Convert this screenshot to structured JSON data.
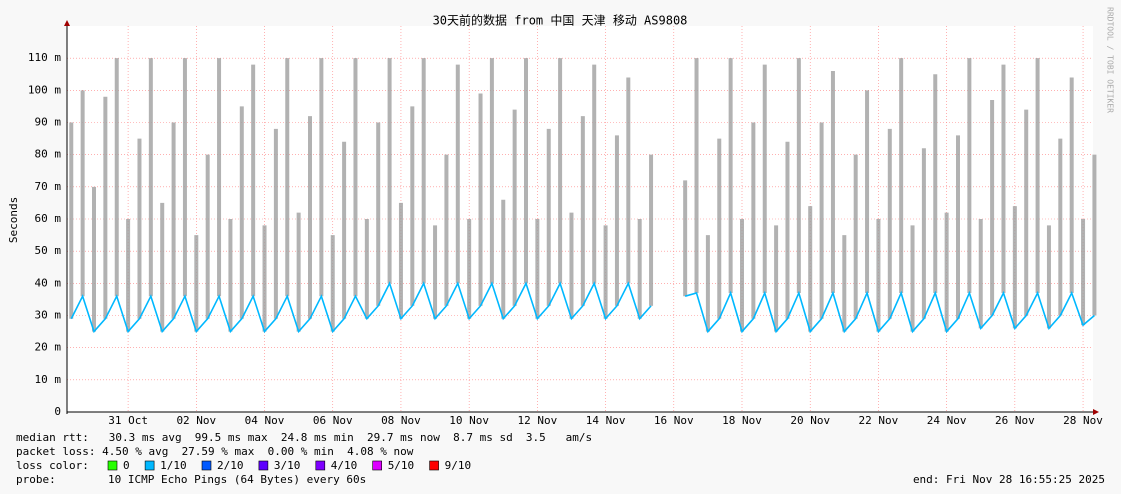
{
  "chart_data": {
    "type": "line",
    "title": "30天前的数据 from 中国 天津 移动 AS9808",
    "y_label": "Seconds",
    "watermark": "RRDTOOL / TOBI OETIKER",
    "ylim": [
      0,
      120
    ],
    "yticks": [
      0,
      {
        "value": 10,
        "label": "10 m"
      },
      {
        "value": 20,
        "label": "20 m"
      },
      {
        "value": 30,
        "label": "30 m"
      },
      {
        "value": 40,
        "label": "40 m"
      },
      {
        "value": 50,
        "label": "50 m"
      },
      {
        "value": 60,
        "label": "60 m"
      },
      {
        "value": 70,
        "label": "70 m"
      },
      {
        "value": 80,
        "label": "80 m"
      },
      {
        "value": 90,
        "label": "90 m"
      },
      {
        "value": 100,
        "label": "100 m"
      },
      {
        "value": 110,
        "label": "110 m"
      }
    ],
    "xlim": [
      "2025-10-29T05:00",
      "2025-11-28T07:00"
    ],
    "xticks": [
      {
        "value": "2025-10-31T00:00",
        "label": "31 Oct"
      },
      {
        "value": "2025-11-02T00:00",
        "label": "02 Nov"
      },
      {
        "value": "2025-11-04T00:00",
        "label": "04 Nov"
      },
      {
        "value": "2025-11-06T00:00",
        "label": "06 Nov"
      },
      {
        "value": "2025-11-08T00:00",
        "label": "08 Nov"
      },
      {
        "value": "2025-11-10T00:00",
        "label": "10 Nov"
      },
      {
        "value": "2025-11-12T00:00",
        "label": "12 Nov"
      },
      {
        "value": "2025-11-14T00:00",
        "label": "14 Nov"
      },
      {
        "value": "2025-11-16T00:00",
        "label": "16 Nov"
      },
      {
        "value": "2025-11-18T00:00",
        "label": "18 Nov"
      },
      {
        "value": "2025-11-20T00:00",
        "label": "20 Nov"
      },
      {
        "value": "2025-11-22T00:00",
        "label": "22 Nov"
      },
      {
        "value": "2025-11-24T00:00",
        "label": "24 Nov"
      },
      {
        "value": "2025-11-26T00:00",
        "label": "26 Nov"
      },
      {
        "value": "2025-11-28T00:00",
        "label": "28 Nov"
      }
    ],
    "grid": true,
    "x": [
      "2025-10-29T08:00",
      "2025-10-29T16:00",
      "2025-10-30T00:00",
      "2025-10-30T08:00",
      "2025-10-30T16:00",
      "2025-10-31T00:00",
      "2025-10-31T08:00",
      "2025-10-31T16:00",
      "2025-11-01T00:00",
      "2025-11-01T08:00",
      "2025-11-01T16:00",
      "2025-11-02T00:00",
      "2025-11-02T08:00",
      "2025-11-02T16:00",
      "2025-11-03T00:00",
      "2025-11-03T08:00",
      "2025-11-03T16:00",
      "2025-11-04T00:00",
      "2025-11-04T08:00",
      "2025-11-04T16:00",
      "2025-11-05T00:00",
      "2025-11-05T08:00",
      "2025-11-05T16:00",
      "2025-11-06T00:00",
      "2025-11-06T08:00",
      "2025-11-06T16:00",
      "2025-11-07T00:00",
      "2025-11-07T08:00",
      "2025-11-07T16:00",
      "2025-11-08T00:00",
      "2025-11-08T08:00",
      "2025-11-08T16:00",
      "2025-11-09T00:00",
      "2025-11-09T08:00",
      "2025-11-09T16:00",
      "2025-11-10T00:00",
      "2025-11-10T08:00",
      "2025-11-10T16:00",
      "2025-11-11T00:00",
      "2025-11-11T08:00",
      "2025-11-11T16:00",
      "2025-11-12T00:00",
      "2025-11-12T08:00",
      "2025-11-12T16:00",
      "2025-11-13T00:00",
      "2025-11-13T08:00",
      "2025-11-13T16:00",
      "2025-11-14T00:00",
      "2025-11-14T08:00",
      "2025-11-14T16:00",
      "2025-11-15T00:00",
      "2025-11-15T08:00",
      "2025-11-15T16:00",
      "2025-11-16T00:00",
      "2025-11-16T08:00",
      "2025-11-16T16:00",
      "2025-11-17T00:00",
      "2025-11-17T08:00",
      "2025-11-17T16:00",
      "2025-11-18T00:00",
      "2025-11-18T08:00",
      "2025-11-18T16:00",
      "2025-11-19T00:00",
      "2025-11-19T08:00",
      "2025-11-19T16:00",
      "2025-11-20T00:00",
      "2025-11-20T08:00",
      "2025-11-20T16:00",
      "2025-11-21T00:00",
      "2025-11-21T08:00",
      "2025-11-21T16:00",
      "2025-11-22T00:00",
      "2025-11-22T08:00",
      "2025-11-22T16:00",
      "2025-11-23T00:00",
      "2025-11-23T08:00",
      "2025-11-23T16:00",
      "2025-11-24T00:00",
      "2025-11-24T08:00",
      "2025-11-24T16:00",
      "2025-11-25T00:00",
      "2025-11-25T08:00",
      "2025-11-25T16:00",
      "2025-11-26T00:00",
      "2025-11-26T08:00",
      "2025-11-26T16:00",
      "2025-11-27T00:00",
      "2025-11-27T08:00",
      "2025-11-27T16:00",
      "2025-11-28T00:00",
      "2025-11-28T08:00"
    ],
    "series": [
      {
        "color": "#00b8ff",
        "values": [
          29,
          36,
          25,
          29,
          36,
          25,
          29,
          36,
          25,
          29,
          36,
          25,
          29,
          36,
          25,
          29,
          36,
          25,
          29,
          36,
          25,
          29,
          36,
          25,
          29,
          36,
          29,
          33,
          40,
          29,
          33,
          40,
          29,
          33,
          40,
          29,
          33,
          40,
          29,
          33,
          40,
          29,
          33,
          40,
          29,
          33,
          40,
          29,
          33,
          40,
          29,
          33,
          null,
          null,
          36,
          37,
          25,
          29,
          37,
          25,
          29,
          37,
          25,
          29,
          37,
          25,
          29,
          37,
          25,
          29,
          37,
          25,
          29,
          37,
          25,
          29,
          37,
          25,
          29,
          37,
          26,
          30,
          37,
          26,
          30,
          37,
          26,
          30,
          37,
          27,
          30
        ]
      },
      {
        "color": "#a0a0a0",
        "values": [
          90,
          100,
          70,
          98,
          110,
          60,
          85,
          110,
          65,
          90,
          110,
          55,
          80,
          110,
          60,
          95,
          108,
          58,
          88,
          110,
          62,
          92,
          110,
          55,
          84,
          110,
          60,
          90,
          110,
          65,
          95,
          110,
          58,
          80,
          108,
          60,
          99,
          110,
          66,
          94,
          110,
          60,
          88,
          110,
          62,
          92,
          108,
          58,
          86,
          104,
          60,
          80,
          null,
          null,
          72,
          110,
          55,
          85,
          110,
          60,
          90,
          108,
          58,
          84,
          110,
          64,
          90,
          106,
          55,
          80,
          100,
          60,
          88,
          110,
          58,
          82,
          105,
          62,
          86,
          110,
          60,
          97,
          108,
          64,
          94,
          110,
          58,
          85,
          104,
          60,
          80
        ]
      }
    ],
    "stats_lines": [
      "median rtt:   30.3 ms avg  99.5 ms max  24.8 ms min  29.7 ms now  8.7 ms sd  3.5   am/s",
      "packet loss: 4.50 % avg  27.59 % max  0.00 % min  4.08 % now"
    ],
    "loss_color_label": "loss color:",
    "loss_legend": [
      {
        "label": "0",
        "color": "#26ff00"
      },
      {
        "label": "1/10",
        "color": "#00b8ff"
      },
      {
        "label": "2/10",
        "color": "#0059ff"
      },
      {
        "label": "3/10",
        "color": "#5e00ff"
      },
      {
        "label": "4/10",
        "color": "#7e00ff"
      },
      {
        "label": "5/10",
        "color": "#dd00ff"
      },
      {
        "label": "9/10",
        "color": "#ff0000"
      }
    ],
    "probe_label": "probe:",
    "probe": "10 ICMP Echo Pings (64 Bytes) every 60s",
    "end": "end: Fri Nov 28 16:55:25 2025"
  }
}
